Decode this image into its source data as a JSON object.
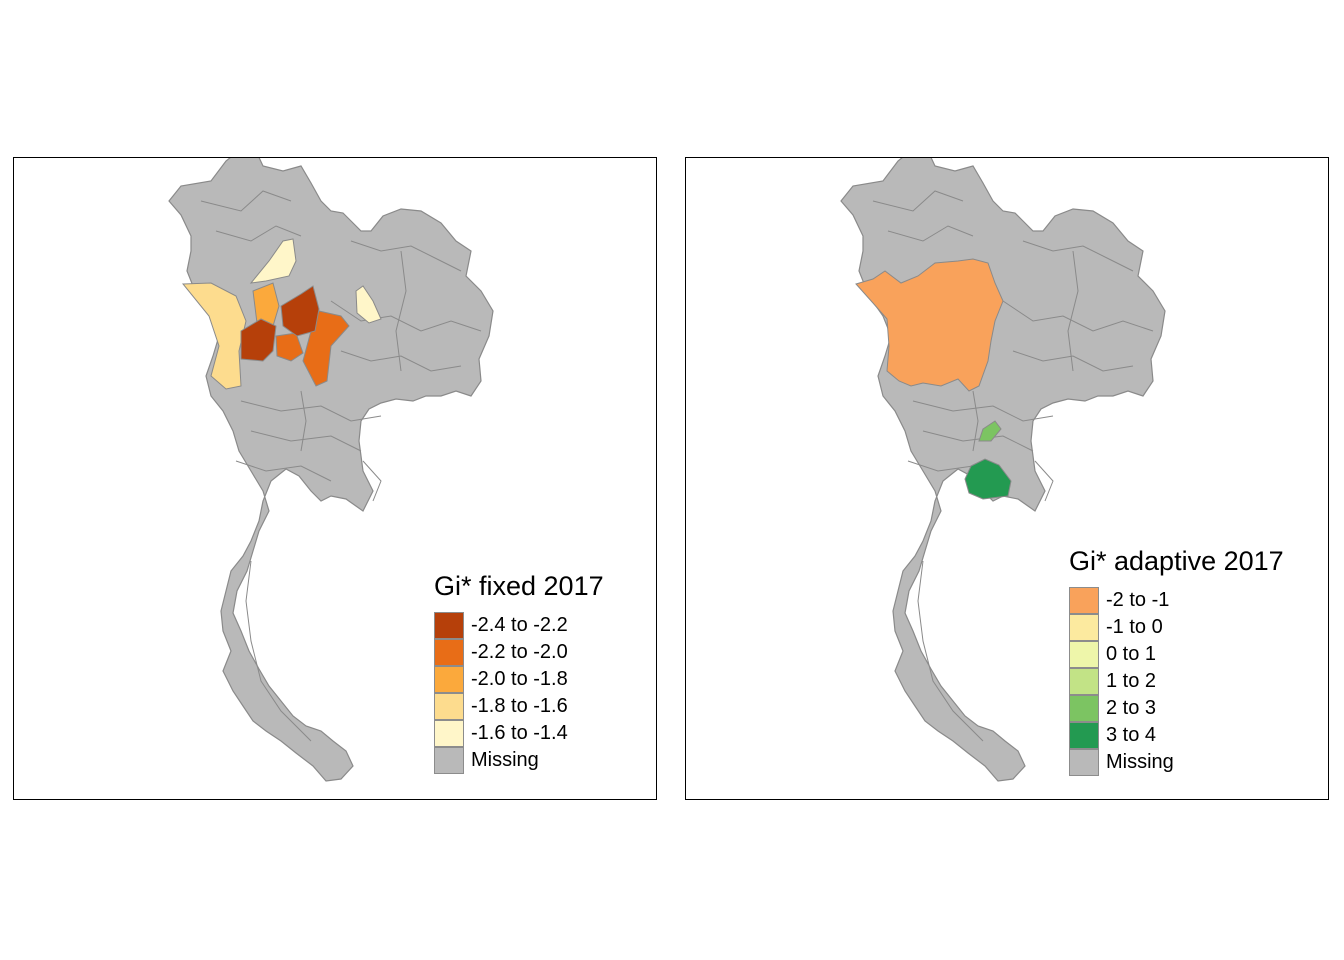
{
  "colors": {
    "missing": "#b9b9b9",
    "border": "#8a8a8a"
  },
  "maps": [
    {
      "title": "Gi* fixed  2017",
      "legend": [
        {
          "label": "-2.4 to -2.2",
          "color": "#b6400a"
        },
        {
          "label": "-2.2 to -2.0",
          "color": "#e86d17"
        },
        {
          "label": "-2.0 to -1.8",
          "color": "#fba93c"
        },
        {
          "label": "-1.8 to -1.6",
          "color": "#fddc8e"
        },
        {
          "label": "-1.6 to -1.4",
          "color": "#fff6c9"
        },
        {
          "label": "Missing",
          "color": "#b9b9b9"
        }
      ]
    },
    {
      "title": "Gi* adaptive 2017",
      "legend": [
        {
          "label": "-2 to -1",
          "color": "#f9a25b"
        },
        {
          "label": "-1 to 0",
          "color": "#fcea9f"
        },
        {
          "label": "0 to 1",
          "color": "#eef6aa"
        },
        {
          "label": "1 to 2",
          "color": "#c2e386"
        },
        {
          "label": "2 to 3",
          "color": "#7cc462"
        },
        {
          "label": "3 to 4",
          "color": "#239a51"
        },
        {
          "label": "Missing",
          "color": "#b9b9b9"
        }
      ]
    }
  ]
}
